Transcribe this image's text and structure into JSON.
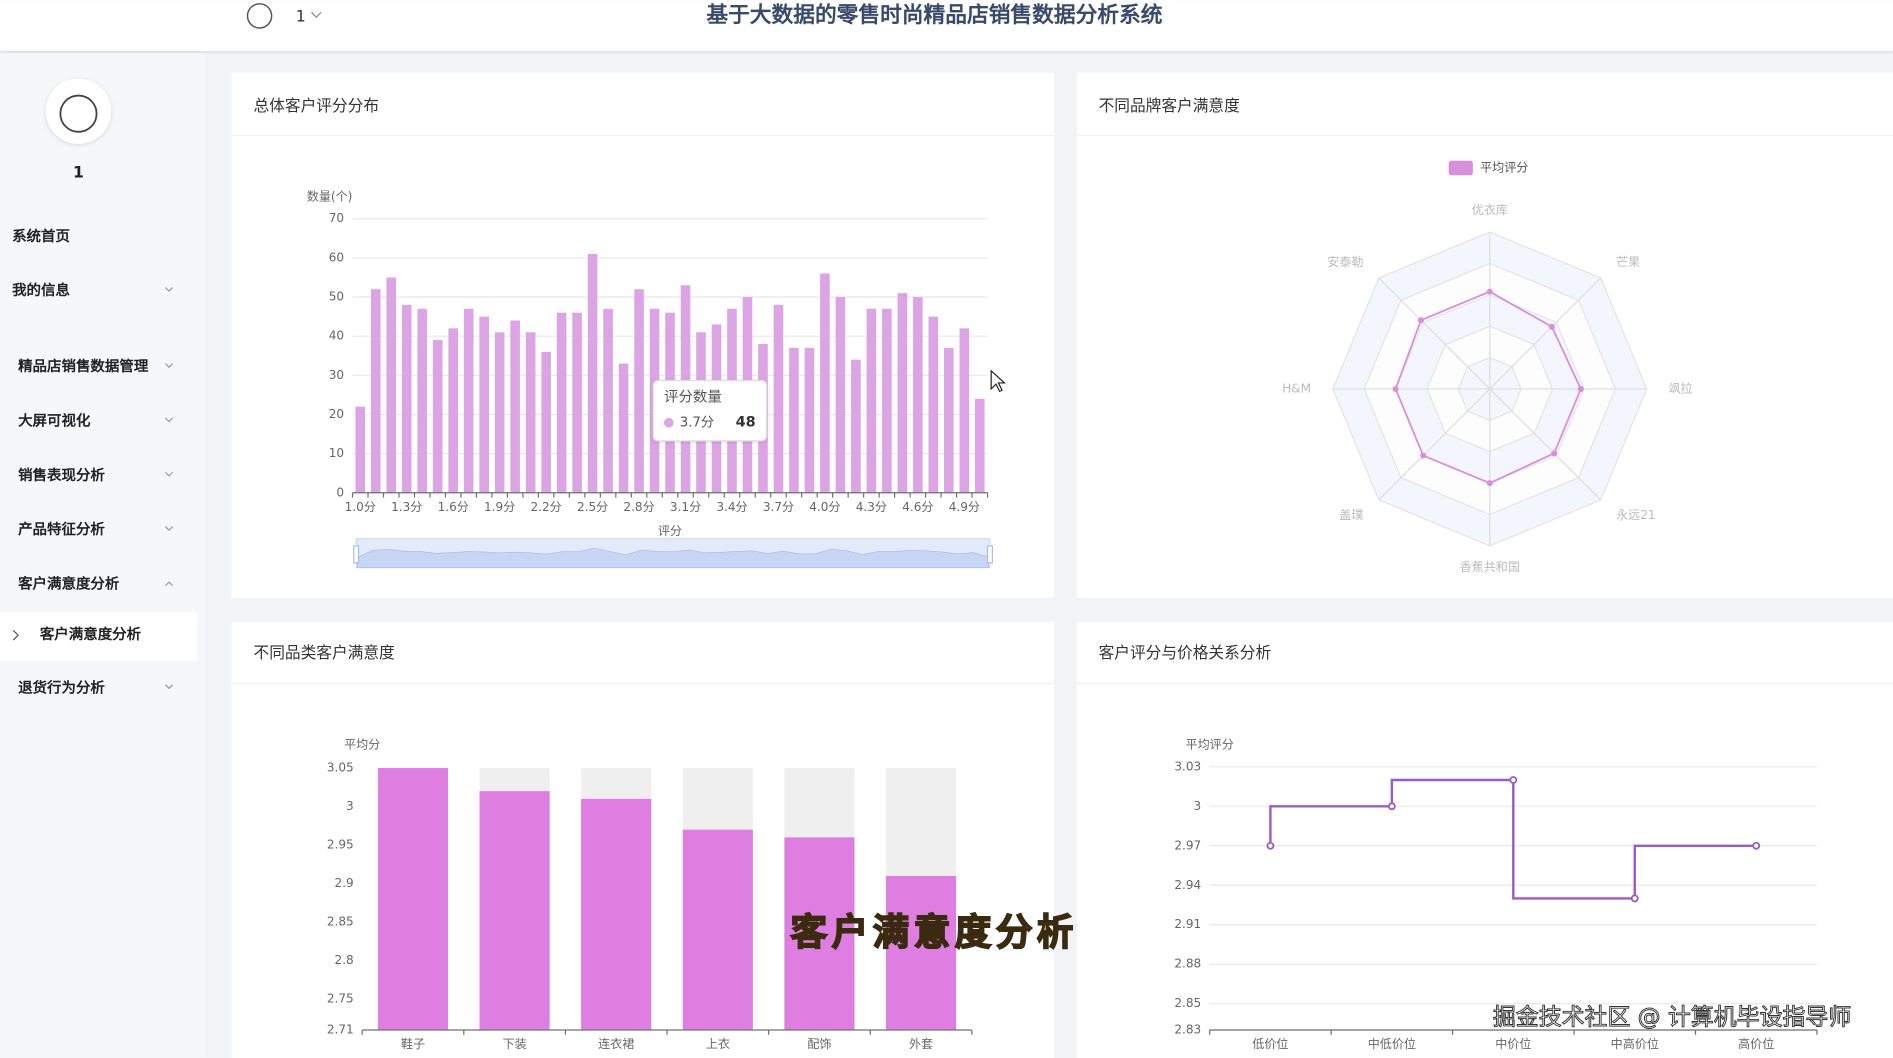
{
  "header": {
    "title": "基于大数据的零售时尚精品店销售数据分析系统",
    "user": "1"
  },
  "sidebar": {
    "user": "1",
    "menu": [
      "系统首页",
      "我的信息",
      "精品店销售数据管理",
      "大屏可视化",
      "销售表现分析",
      "产品特征分析",
      "客户满意度分析",
      "客户满意度分析",
      "退货行为分析"
    ]
  },
  "chart_data": [
    {
      "type": "bar",
      "title": "总体客户评分分布",
      "y_label": "数量(个)",
      "x_label": "评分",
      "categories": [
        "1.0分",
        null,
        null,
        "1.3分",
        null,
        null,
        "1.6分",
        null,
        null,
        "1.9分",
        null,
        null,
        "2.2分",
        null,
        null,
        "2.5分",
        null,
        null,
        "2.8分",
        null,
        null,
        "3.1分",
        null,
        null,
        "3.4分",
        null,
        null,
        "3.7分",
        null,
        null,
        "4.0分",
        null,
        null,
        "4.3分",
        null,
        null,
        "4.6分",
        null,
        null,
        "4.9分",
        null
      ],
      "series": [
        {
          "name": "评分数量",
          "color": "#dca4e4",
          "values": [
            22,
            52,
            55,
            48,
            47,
            39,
            42,
            47,
            45,
            41,
            44,
            41,
            36,
            46,
            46,
            61,
            47,
            33,
            52,
            47,
            46,
            53,
            41,
            43,
            47,
            50,
            38,
            48,
            37,
            37,
            56,
            50,
            34,
            47,
            47,
            51,
            50,
            45,
            37,
            42,
            24
          ]
        }
      ],
      "ylim": [
        0,
        70
      ],
      "yticks": [
        0,
        10,
        20,
        30,
        40,
        50,
        60,
        70
      ],
      "grid": true
    },
    {
      "type": "radar",
      "title": "不同品牌客户满意度",
      "indicators": [
        "优衣库",
        "芒果",
        "飒拉",
        "永远21",
        "香蕉共和国",
        "盖璞",
        "H&M",
        "安泰勒"
      ],
      "series": [
        {
          "name": "平均评分",
          "color": "#d98fdc",
          "values": [
            3.1,
            2.8,
            2.9,
            2.9,
            3.0,
            3.0,
            3.0,
            3.1
          ]
        }
      ],
      "rlim": [
        0,
        5
      ],
      "legend": "top"
    },
    {
      "type": "bar",
      "title": "不同品类客户满意度",
      "y_label": "平均分",
      "categories": [
        "鞋子",
        "下装",
        "连衣裙",
        "上衣",
        "配饰",
        "外套"
      ],
      "values": [
        3.05,
        3.02,
        3.01,
        2.97,
        2.96,
        2.91
      ],
      "color": "#dd7ee0",
      "background": "#efefef",
      "ylim": [
        2.71,
        3.05
      ],
      "yticks": [
        2.71,
        2.75,
        2.8,
        2.85,
        2.9,
        2.95,
        3,
        3.05
      ],
      "grid": false
    },
    {
      "type": "line",
      "title": "客户评分与价格关系分析",
      "y_label": "平均评分",
      "step": "start",
      "categories": [
        "低价位",
        "中低价位",
        "中价位",
        "中高价位",
        "高价位"
      ],
      "values": [
        2.97,
        3.0,
        3.02,
        2.93,
        2.97
      ],
      "color": "#9a5cc6",
      "ylim": [
        2.83,
        3.03
      ],
      "yticks": [
        2.83,
        2.85,
        2.88,
        2.91,
        2.94,
        2.97,
        3,
        3.03
      ],
      "grid": true
    }
  ],
  "overlay": {
    "caption": "客户满意度分析",
    "watermark": "掘金技术社区 @ 计算机毕设指导师"
  }
}
